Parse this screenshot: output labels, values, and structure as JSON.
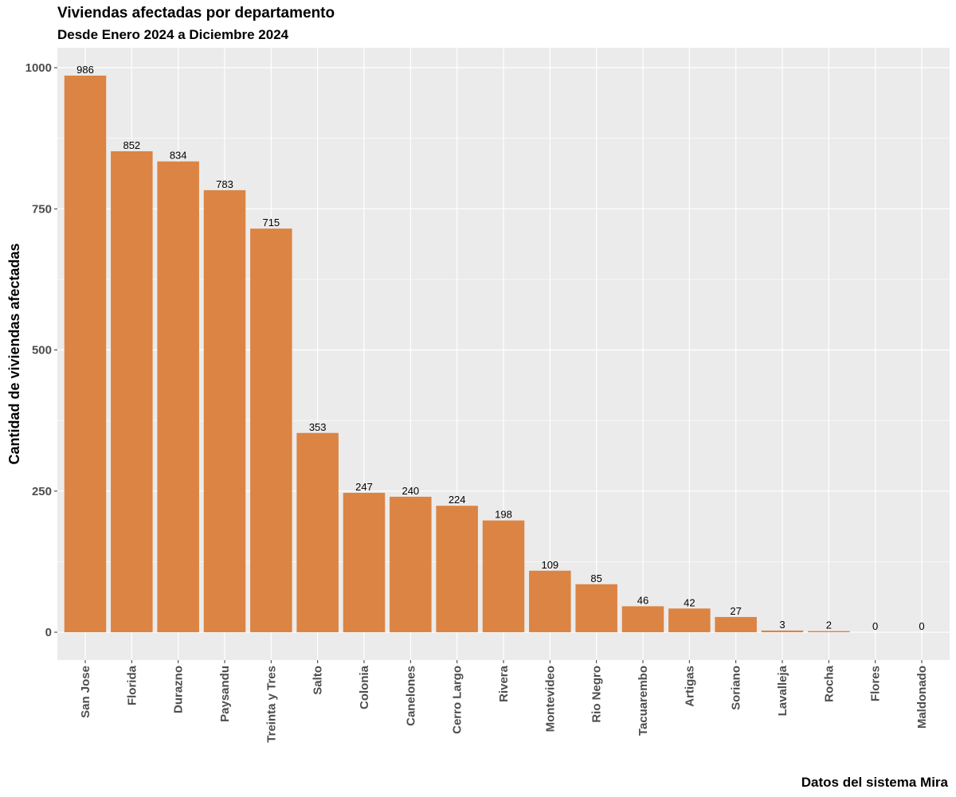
{
  "chart_data": {
    "type": "bar",
    "title": "Viviendas afectadas por departamento",
    "subtitle": "Desde Enero 2024 a Diciembre 2024",
    "caption": "Datos del sistema Mira",
    "xlabel": "",
    "ylabel": "Cantidad de viviendas afectadas",
    "categories": [
      "San Jose",
      "Florida",
      "Durazno",
      "Paysandu",
      "Treinta y Tres",
      "Salto",
      "Colonia",
      "Canelones",
      "Cerro Largo",
      "Rivera",
      "Montevideo",
      "Rio Negro",
      "Tacuarembo",
      "Artigas",
      "Soriano",
      "Lavalleja",
      "Rocha",
      "Flores",
      "Maldonado"
    ],
    "values": [
      986,
      852,
      834,
      783,
      715,
      353,
      247,
      240,
      224,
      198,
      109,
      85,
      46,
      42,
      27,
      3,
      2,
      0,
      0
    ],
    "data_labels": [
      "986",
      "852",
      "834",
      "783",
      "715",
      "353",
      "247",
      "240",
      "224",
      "198",
      "109",
      "85",
      "46",
      "42",
      "27",
      "3",
      "2",
      "0",
      "0"
    ],
    "yticks": [
      0,
      250,
      500,
      750,
      1000
    ],
    "ylim": [
      -49.3,
      1035.3
    ],
    "grid": true,
    "legend": "none",
    "bar_color": "#DC8443",
    "panel_color": "#EBEBEB",
    "grid_color": "#FFFFFF"
  }
}
